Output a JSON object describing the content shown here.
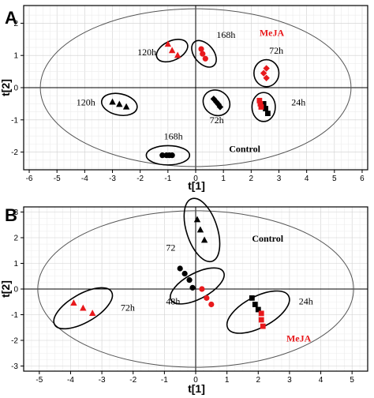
{
  "chart_data": [
    {
      "type": "scatter",
      "panel": "A",
      "xlabel": "t[1]",
      "ylabel": "t[2]",
      "xlim": [
        -6.2,
        6.2
      ],
      "ylim": [
        -2.55,
        2.55
      ],
      "xticks": [
        -6,
        -5,
        -4,
        -3,
        -2,
        -1,
        0,
        1,
        2,
        3,
        4,
        5,
        6
      ],
      "yticks": [
        -2,
        -1,
        0,
        1,
        2
      ],
      "grid": true,
      "confidence_ellipse": {
        "cx": 0.0,
        "cy": 0.0,
        "rx": 5.6,
        "ry": 2.45
      },
      "colors": {
        "control": "#000000",
        "meja": "#e8191c"
      },
      "series": [
        {
          "color": "control",
          "shape": "triangle",
          "points": [
            [
              -3.0,
              -0.45
            ],
            [
              -2.75,
              -0.52
            ],
            [
              -2.5,
              -0.6
            ]
          ]
        },
        {
          "color": "control",
          "shape": "circle",
          "points": [
            [
              -1.2,
              -2.1
            ],
            [
              -1.05,
              -2.1
            ],
            [
              -0.95,
              -2.1
            ],
            [
              -0.85,
              -2.1
            ]
          ]
        },
        {
          "color": "control",
          "shape": "diamond",
          "points": [
            [
              0.65,
              -0.35
            ],
            [
              0.75,
              -0.45
            ],
            [
              0.82,
              -0.52
            ],
            [
              0.88,
              -0.6
            ]
          ]
        },
        {
          "color": "control",
          "shape": "square",
          "points": [
            [
              2.45,
              -0.5
            ],
            [
              2.52,
              -0.65
            ],
            [
              2.6,
              -0.8
            ]
          ]
        },
        {
          "color": "meja",
          "shape": "triangle",
          "points": [
            [
              -1.0,
              1.35
            ],
            [
              -0.85,
              1.15
            ],
            [
              -0.65,
              1.0
            ]
          ]
        },
        {
          "color": "meja",
          "shape": "circle",
          "points": [
            [
              0.2,
              1.2
            ],
            [
              0.25,
              1.05
            ],
            [
              0.35,
              0.9
            ]
          ]
        },
        {
          "color": "meja",
          "shape": "diamond",
          "points": [
            [
              2.55,
              0.6
            ],
            [
              2.45,
              0.45
            ],
            [
              2.55,
              0.3
            ]
          ]
        },
        {
          "color": "meja",
          "shape": "square",
          "points": [
            [
              2.3,
              -0.4
            ],
            [
              2.33,
              -0.5
            ],
            [
              2.36,
              -0.6
            ]
          ]
        }
      ],
      "groups": [
        {
          "cx": -2.75,
          "cy": -0.52,
          "rx": 0.65,
          "ry": 0.33,
          "rot": 12
        },
        {
          "cx": -1.0,
          "cy": -2.1,
          "rx": 0.78,
          "ry": 0.3,
          "rot": 0
        },
        {
          "cx": 0.75,
          "cy": -0.47,
          "rx": 0.5,
          "ry": 0.38,
          "rot": 35
        },
        {
          "cx": 2.45,
          "cy": -0.6,
          "rx": 0.42,
          "ry": 0.45,
          "rot": 0
        },
        {
          "cx": -0.85,
          "cy": 1.15,
          "rx": 0.6,
          "ry": 0.3,
          "rot": -25
        },
        {
          "cx": 0.3,
          "cy": 1.05,
          "rx": 0.55,
          "ry": 0.3,
          "rot": 50
        },
        {
          "cx": 2.55,
          "cy": 0.45,
          "rx": 0.45,
          "ry": 0.42,
          "rot": 0
        }
      ],
      "annotations": [
        {
          "text": "120h",
          "x": -2.1,
          "y": 1.0,
          "style": "normal"
        },
        {
          "text": "168h",
          "x": 0.75,
          "y": 1.55,
          "style": "normal"
        },
        {
          "text": "MeJA",
          "x": 2.3,
          "y": 1.6,
          "style": "meja"
        },
        {
          "text": "72h",
          "x": 2.65,
          "y": 1.05,
          "style": "normal"
        },
        {
          "text": "120h",
          "x": -4.3,
          "y": -0.55,
          "style": "normal"
        },
        {
          "text": "72h",
          "x": 0.5,
          "y": -1.1,
          "style": "normal"
        },
        {
          "text": "24h",
          "x": 3.45,
          "y": -0.55,
          "style": "normal"
        },
        {
          "text": "168h",
          "x": -1.15,
          "y": -1.6,
          "style": "normal"
        },
        {
          "text": "Control",
          "x": 1.2,
          "y": -2.0,
          "style": "control"
        }
      ]
    },
    {
      "type": "scatter",
      "panel": "B",
      "xlabel": "t[1]",
      "ylabel": "t[2]",
      "xlim": [
        -5.5,
        5.5
      ],
      "ylim": [
        -3.2,
        3.2
      ],
      "xticks": [
        -5,
        -4,
        -3,
        -2,
        -1,
        0,
        1,
        2,
        3,
        4,
        5
      ],
      "yticks": [
        -3,
        -2,
        -1,
        0,
        1,
        2,
        3
      ],
      "grid": true,
      "confidence_ellipse": {
        "cx": 0.0,
        "cy": 0.0,
        "rx": 5.05,
        "ry": 3.05
      },
      "colors": {
        "control": "#000000",
        "meja": "#e8191c"
      },
      "series": [
        {
          "color": "control",
          "shape": "triangle",
          "points": [
            [
              0.05,
              2.7
            ],
            [
              0.15,
              2.3
            ],
            [
              0.28,
              1.9
            ]
          ]
        },
        {
          "color": "control",
          "shape": "circle",
          "points": [
            [
              -0.5,
              0.8
            ],
            [
              -0.35,
              0.6
            ],
            [
              -0.2,
              0.35
            ],
            [
              -0.1,
              0.05
            ]
          ]
        },
        {
          "color": "control",
          "shape": "square",
          "points": [
            [
              1.8,
              -0.35
            ],
            [
              1.9,
              -0.6
            ],
            [
              2.0,
              -0.8
            ]
          ]
        },
        {
          "color": "meja",
          "shape": "triangle",
          "points": [
            [
              -3.9,
              -0.55
            ],
            [
              -3.6,
              -0.75
            ],
            [
              -3.3,
              -0.95
            ]
          ]
        },
        {
          "color": "meja",
          "shape": "circle",
          "points": [
            [
              0.2,
              0.0
            ],
            [
              0.35,
              -0.35
            ],
            [
              0.5,
              -0.6
            ]
          ]
        },
        {
          "color": "meja",
          "shape": "square",
          "points": [
            [
              2.1,
              -0.95
            ],
            [
              2.1,
              -1.2
            ],
            [
              2.15,
              -1.45
            ]
          ]
        }
      ],
      "groups": [
        {
          "cx": 0.2,
          "cy": 2.3,
          "rx": 1.05,
          "ry": 0.6,
          "rot": 72
        },
        {
          "cx": 0.05,
          "cy": 0.12,
          "rx": 0.95,
          "ry": 0.5,
          "rot": -28
        },
        {
          "cx": 2.0,
          "cy": -0.9,
          "rx": 1.1,
          "ry": 0.6,
          "rot": -28
        },
        {
          "cx": -3.6,
          "cy": -0.75,
          "rx": 1.05,
          "ry": 0.55,
          "rot": -30
        }
      ],
      "annotations": [
        {
          "text": "Control",
          "x": 1.8,
          "y": 1.85,
          "style": "control"
        },
        {
          "text": "72",
          "x": -0.95,
          "y": 1.5,
          "style": "normal"
        },
        {
          "text": "72h",
          "x": -2.4,
          "y": -0.85,
          "style": "normal"
        },
        {
          "text": "48h",
          "x": -0.95,
          "y": -0.6,
          "style": "normal"
        },
        {
          "text": "24h",
          "x": 3.3,
          "y": -0.6,
          "style": "normal"
        },
        {
          "text": "MeJA",
          "x": 2.9,
          "y": -2.05,
          "style": "meja"
        }
      ]
    }
  ]
}
